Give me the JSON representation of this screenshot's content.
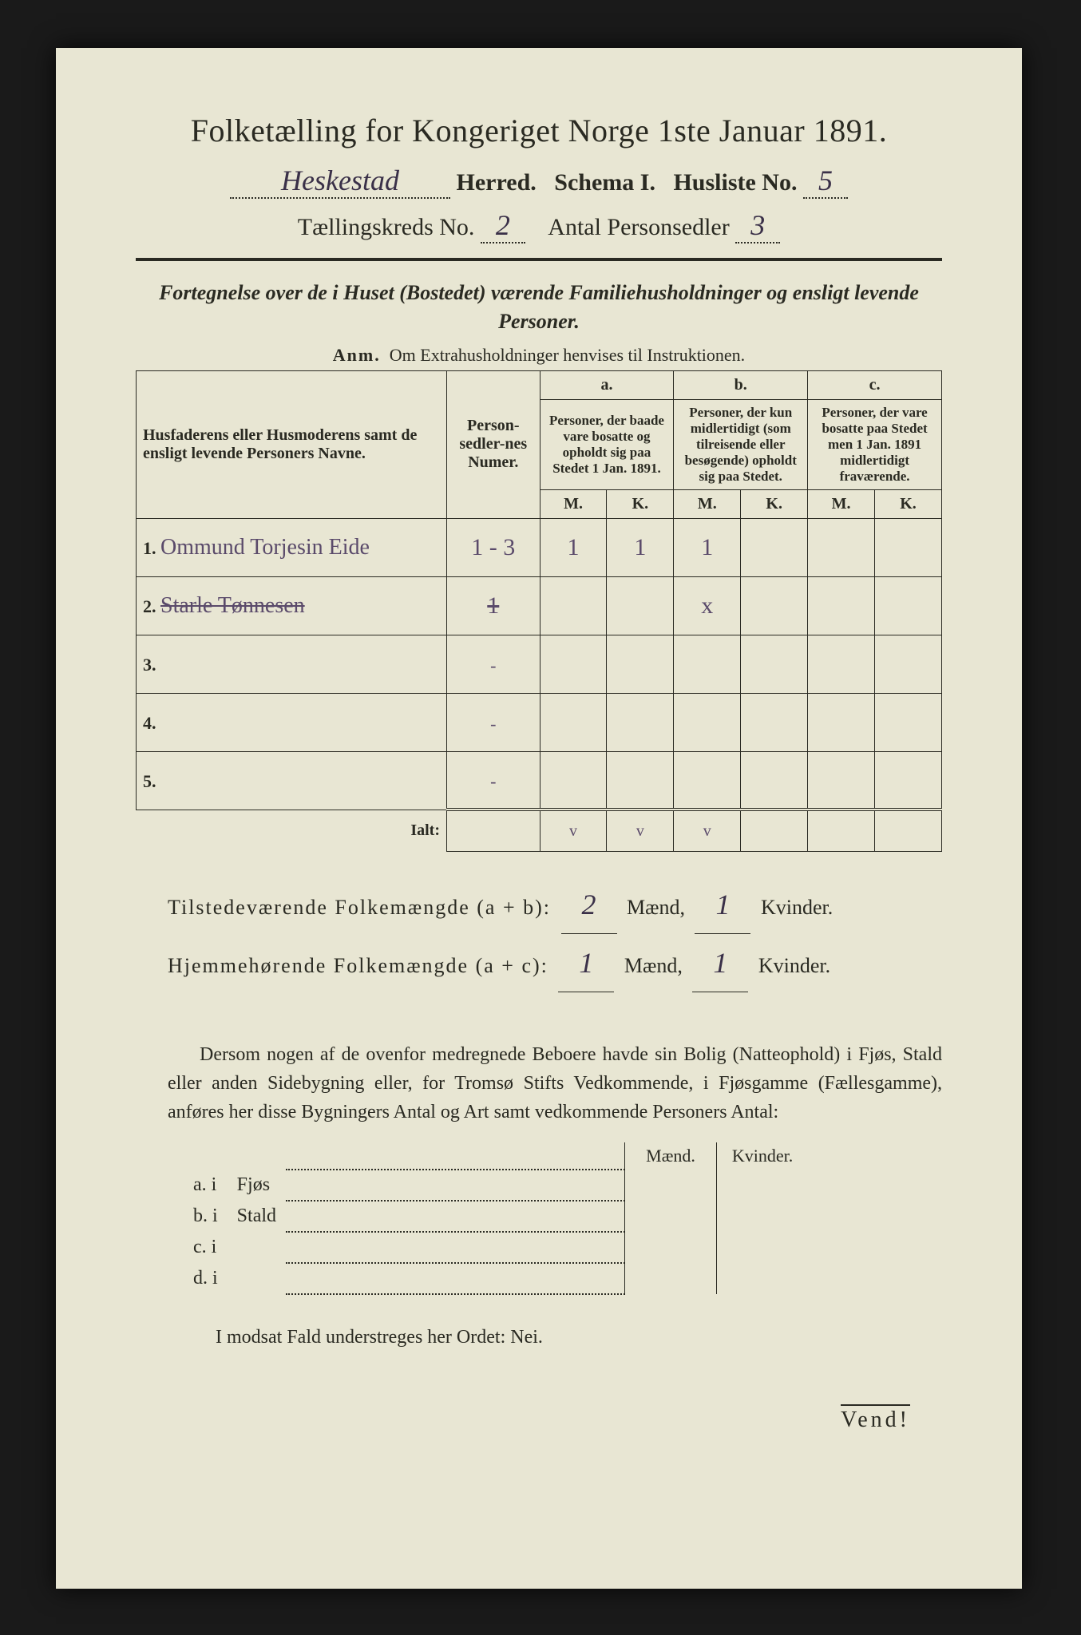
{
  "page": {
    "background": "#1a1a1a",
    "paper_color": "#e8e6d3",
    "ink_color": "#2a2a22",
    "handwriting_color": "#5a4a6a"
  },
  "header": {
    "title": "Folketælling for Kongeriget Norge 1ste Januar 1891.",
    "herred_hw": "Heskestad",
    "herred_lbl": "Herred.",
    "schema_lbl": "Schema I.",
    "husliste_lbl": "Husliste No.",
    "husliste_hw": "5",
    "kreds_lbl": "Tællingskreds No.",
    "kreds_hw": "2",
    "antal_lbl": "Antal Personsedler",
    "antal_hw": "3"
  },
  "subtitle": "Fortegnelse over de i Huset (Bostedet) værende Familiehusholdninger og ensligt levende Personer.",
  "anm": {
    "bold": "Anm.",
    "text": "Om Extrahusholdninger henvises til Instruktionen."
  },
  "table": {
    "col_names": "Husfaderens eller Husmoderens samt de ensligt levende Personers Navne.",
    "col_num": "Person-sedler-nes Numer.",
    "col_a_hdr": "a.",
    "col_a": "Personer, der baade vare bosatte og opholdt sig paa Stedet 1 Jan. 1891.",
    "col_b_hdr": "b.",
    "col_b": "Personer, der kun midlertidigt (som tilreisende eller besøgende) opholdt sig paa Stedet.",
    "col_c_hdr": "c.",
    "col_c": "Personer, der vare bosatte paa Stedet men 1 Jan. 1891 midlertidigt fraværende.",
    "m": "M.",
    "k": "K.",
    "rows": [
      {
        "n": "1.",
        "name_hw": "Ommund Torjesin Eide",
        "num_hw": "1 - 3",
        "a_m": "1",
        "a_k": "1",
        "b_m": "1",
        "b_k": "",
        "c_m": "",
        "c_k": ""
      },
      {
        "n": "2.",
        "name_hw": "Starle Tønnesen",
        "num_hw": "1",
        "a_m": "",
        "a_k": "",
        "b_m": "x",
        "b_k": "",
        "c_m": "",
        "c_k": "",
        "struck": true
      },
      {
        "n": "3.",
        "name_hw": "",
        "num_hw": "",
        "a_m": "",
        "a_k": "",
        "b_m": "",
        "b_k": "",
        "c_m": "",
        "c_k": ""
      },
      {
        "n": "4.",
        "name_hw": "",
        "num_hw": "",
        "a_m": "",
        "a_k": "",
        "b_m": "",
        "b_k": "",
        "c_m": "",
        "c_k": ""
      },
      {
        "n": "5.",
        "name_hw": "",
        "num_hw": "",
        "a_m": "",
        "a_k": "",
        "b_m": "",
        "b_k": "",
        "c_m": "",
        "c_k": ""
      }
    ],
    "ialt": "Ialt:",
    "checks": {
      "a_m": "v",
      "a_k": "v",
      "b_m": "v"
    }
  },
  "totals": {
    "line1_lbl": "Tilstedeværende Folkemængde (a + b):",
    "line1_m": "2",
    "line1_k": "1",
    "line2_lbl": "Hjemmehørende Folkemængde (a + c):",
    "line2_m": "1",
    "line2_k": "1",
    "maend": "Mænd,",
    "kvinder": "Kvinder."
  },
  "para": "Dersom nogen af de ovenfor medregnede Beboere havde sin Bolig (Natteophold) i Fjøs, Stald eller anden Sidebygning eller, for Tromsø Stifts Vedkommende, i Fjøsgamme (Fællesgamme), anføres her disse Bygningers Antal og Art samt vedkommende Personers Antal:",
  "bygn": {
    "maend": "Mænd.",
    "kvinder": "Kvinder.",
    "rows": [
      {
        "lbl": "a.  i",
        "txt": "Fjøs"
      },
      {
        "lbl": "b.  i",
        "txt": "Stald"
      },
      {
        "lbl": "c.  i",
        "txt": ""
      },
      {
        "lbl": "d.  i",
        "txt": ""
      }
    ]
  },
  "modsat": "I modsat Fald understreges her Ordet: Nei.",
  "vend": "Vend!"
}
